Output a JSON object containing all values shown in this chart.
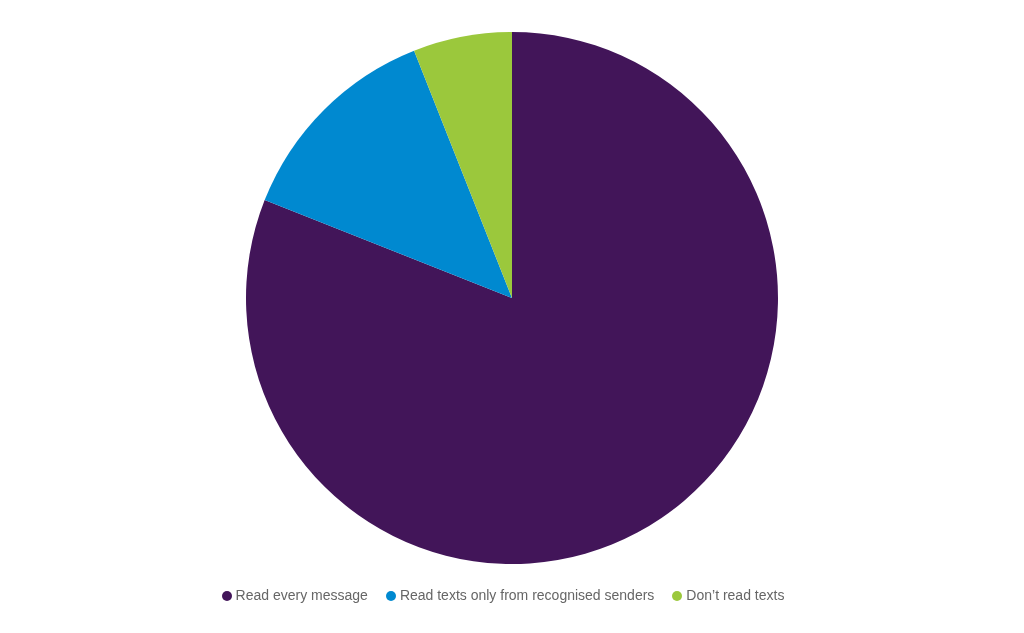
{
  "chart_data": {
    "type": "pie",
    "categories": [
      "Read every message",
      "Read texts only from recognised senders",
      "Don’t read texts"
    ],
    "values": [
      81,
      13,
      6
    ],
    "colors": [
      "#421559",
      "#0089d0",
      "#9bc83c"
    ],
    "legend": "bottom"
  }
}
